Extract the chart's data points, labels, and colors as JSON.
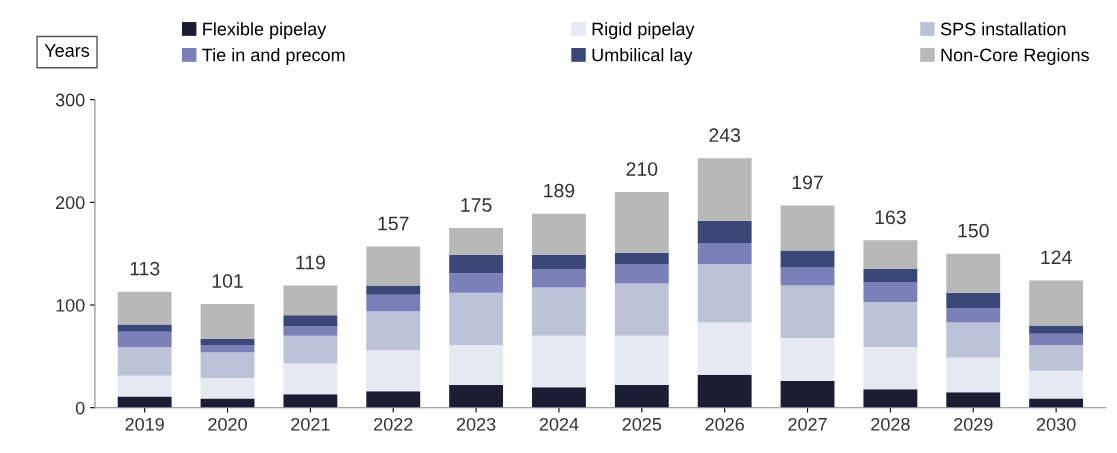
{
  "chart_data": {
    "type": "bar",
    "stacked": true,
    "ylabel": "Years",
    "categories": [
      "2019",
      "2020",
      "2021",
      "2022",
      "2023",
      "2024",
      "2025",
      "2026",
      "2027",
      "2028",
      "2029",
      "2030"
    ],
    "series": [
      {
        "name": "Flexible pipelay",
        "color": "#1c1c34",
        "values": [
          11,
          9,
          13,
          16,
          22,
          20,
          22,
          32,
          26,
          18,
          15,
          9
        ]
      },
      {
        "name": "Rigid pipelay",
        "color": "#e6e8f2",
        "values": [
          20,
          20,
          30,
          40,
          39,
          50,
          48,
          51,
          42,
          41,
          34,
          27
        ]
      },
      {
        "name": "SPS installation",
        "color": "#bcc3d8",
        "values": [
          28,
          25,
          27,
          38,
          51,
          47,
          51,
          57,
          51,
          44,
          34,
          25
        ]
      },
      {
        "name": "Tie in and precom",
        "color": "#7b80b8",
        "values": [
          15,
          7,
          9,
          16,
          19,
          18,
          19,
          20,
          18,
          19,
          14,
          11
        ]
      },
      {
        "name": "Umbilical lay",
        "color": "#3b4778",
        "values": [
          7,
          6,
          11,
          9,
          18,
          14,
          11,
          22,
          16,
          13,
          15,
          8
        ]
      },
      {
        "name": "Non-Core Regions",
        "color": "#b8b8b8",
        "values": [
          32,
          34,
          29,
          38,
          26,
          40,
          59,
          61,
          44,
          28,
          38,
          44
        ]
      }
    ],
    "totals": [
      "113",
      "101",
      "119",
      "157",
      "175",
      "189",
      "210",
      "243",
      "197",
      "163",
      "150",
      "124"
    ],
    "ylim": [
      0,
      300
    ],
    "yticks": [
      0,
      100,
      200,
      300
    ],
    "grid": false,
    "legend": "top"
  }
}
